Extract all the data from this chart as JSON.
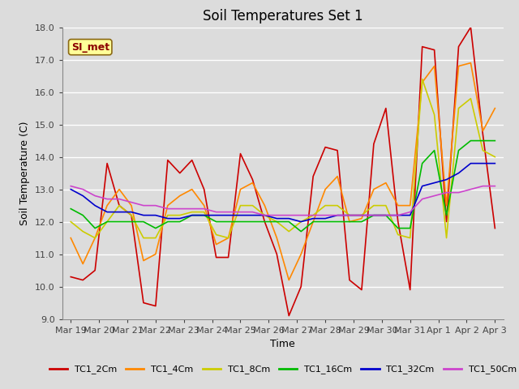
{
  "title": "Soil Temperatures Set 1",
  "xlabel": "Time",
  "ylabel": "Soil Temperature (C)",
  "ylim": [
    9.0,
    18.0
  ],
  "yticks": [
    9.0,
    10.0,
    11.0,
    12.0,
    13.0,
    14.0,
    15.0,
    16.0,
    17.0,
    18.0
  ],
  "x_labels": [
    "Mar 19",
    "Mar 20",
    "Mar 21",
    "Mar 22",
    "Mar 23",
    "Mar 24",
    "Mar 25",
    "Mar 26",
    "Mar 27",
    "Mar 28",
    "Mar 29",
    "Mar 30",
    "Mar 31",
    "Apr 1",
    "Apr 2",
    "Apr 3"
  ],
  "annotation_text": "SI_met",
  "annotation_color": "#8B0000",
  "annotation_bg": "#FFFF99",
  "annotation_border": "#8B6914",
  "series_keys": [
    "TC1_2Cm",
    "TC1_4Cm",
    "TC1_8Cm",
    "TC1_16Cm",
    "TC1_32Cm",
    "TC1_50Cm"
  ],
  "series_colors": [
    "#CC0000",
    "#FF8800",
    "#CCCC00",
    "#00BB00",
    "#0000CC",
    "#CC44CC"
  ],
  "series_linewidth": 1.2,
  "TC1_2Cm": [
    10.3,
    10.2,
    10.5,
    13.8,
    12.5,
    12.2,
    9.5,
    9.4,
    13.9,
    13.5,
    13.9,
    13.0,
    10.9,
    10.9,
    14.1,
    13.3,
    12.0,
    11.0,
    9.1,
    10.0,
    13.4,
    14.3,
    14.2,
    10.2,
    9.9,
    14.4,
    15.5,
    12.0,
    9.9,
    17.4,
    17.3,
    12.0,
    17.4,
    18.0,
    14.7,
    11.8
  ],
  "TC1_4Cm": [
    11.5,
    10.7,
    11.5,
    12.5,
    13.0,
    12.5,
    10.8,
    11.0,
    12.5,
    12.8,
    13.0,
    12.5,
    11.3,
    11.5,
    13.0,
    13.2,
    12.5,
    11.5,
    10.2,
    11.0,
    12.0,
    13.0,
    13.4,
    12.0,
    12.1,
    13.0,
    13.2,
    12.5,
    12.5,
    16.3,
    16.8,
    12.5,
    16.8,
    16.9,
    14.8,
    15.5
  ],
  "TC1_8Cm": [
    12.0,
    11.7,
    11.5,
    12.0,
    12.5,
    12.2,
    11.5,
    11.5,
    12.2,
    12.2,
    12.3,
    12.3,
    11.6,
    11.5,
    12.5,
    12.5,
    12.2,
    12.0,
    11.7,
    12.0,
    12.2,
    12.5,
    12.5,
    12.2,
    12.2,
    12.5,
    12.5,
    11.6,
    11.5,
    16.4,
    15.3,
    11.5,
    15.5,
    15.8,
    14.2,
    14.0
  ],
  "TC1_16Cm": [
    12.4,
    12.2,
    11.8,
    12.0,
    12.0,
    12.0,
    12.0,
    11.8,
    12.0,
    12.0,
    12.2,
    12.2,
    12.0,
    12.0,
    12.0,
    12.0,
    12.0,
    12.0,
    12.0,
    11.7,
    12.0,
    12.0,
    12.0,
    12.0,
    12.0,
    12.2,
    12.2,
    11.8,
    11.8,
    13.8,
    14.2,
    12.2,
    14.2,
    14.5,
    14.5,
    14.5
  ],
  "TC1_32Cm": [
    13.0,
    12.8,
    12.5,
    12.3,
    12.3,
    12.3,
    12.2,
    12.2,
    12.1,
    12.1,
    12.2,
    12.2,
    12.2,
    12.2,
    12.2,
    12.2,
    12.2,
    12.1,
    12.1,
    12.0,
    12.1,
    12.1,
    12.2,
    12.2,
    12.2,
    12.2,
    12.2,
    12.2,
    12.2,
    13.1,
    13.2,
    13.3,
    13.5,
    13.8,
    13.8,
    13.8
  ],
  "TC1_50Cm": [
    13.1,
    13.0,
    12.8,
    12.7,
    12.7,
    12.6,
    12.5,
    12.5,
    12.4,
    12.4,
    12.4,
    12.4,
    12.3,
    12.3,
    12.3,
    12.3,
    12.2,
    12.2,
    12.2,
    12.2,
    12.2,
    12.2,
    12.2,
    12.2,
    12.2,
    12.2,
    12.2,
    12.2,
    12.3,
    12.7,
    12.8,
    12.9,
    12.9,
    13.0,
    13.1,
    13.1
  ],
  "bg_color": "#DCDCDC",
  "plot_bg_color": "#DCDCDC",
  "grid_color": "#FFFFFF",
  "title_fontsize": 12,
  "axis_label_fontsize": 9,
  "tick_fontsize": 8,
  "legend_fontsize": 8
}
